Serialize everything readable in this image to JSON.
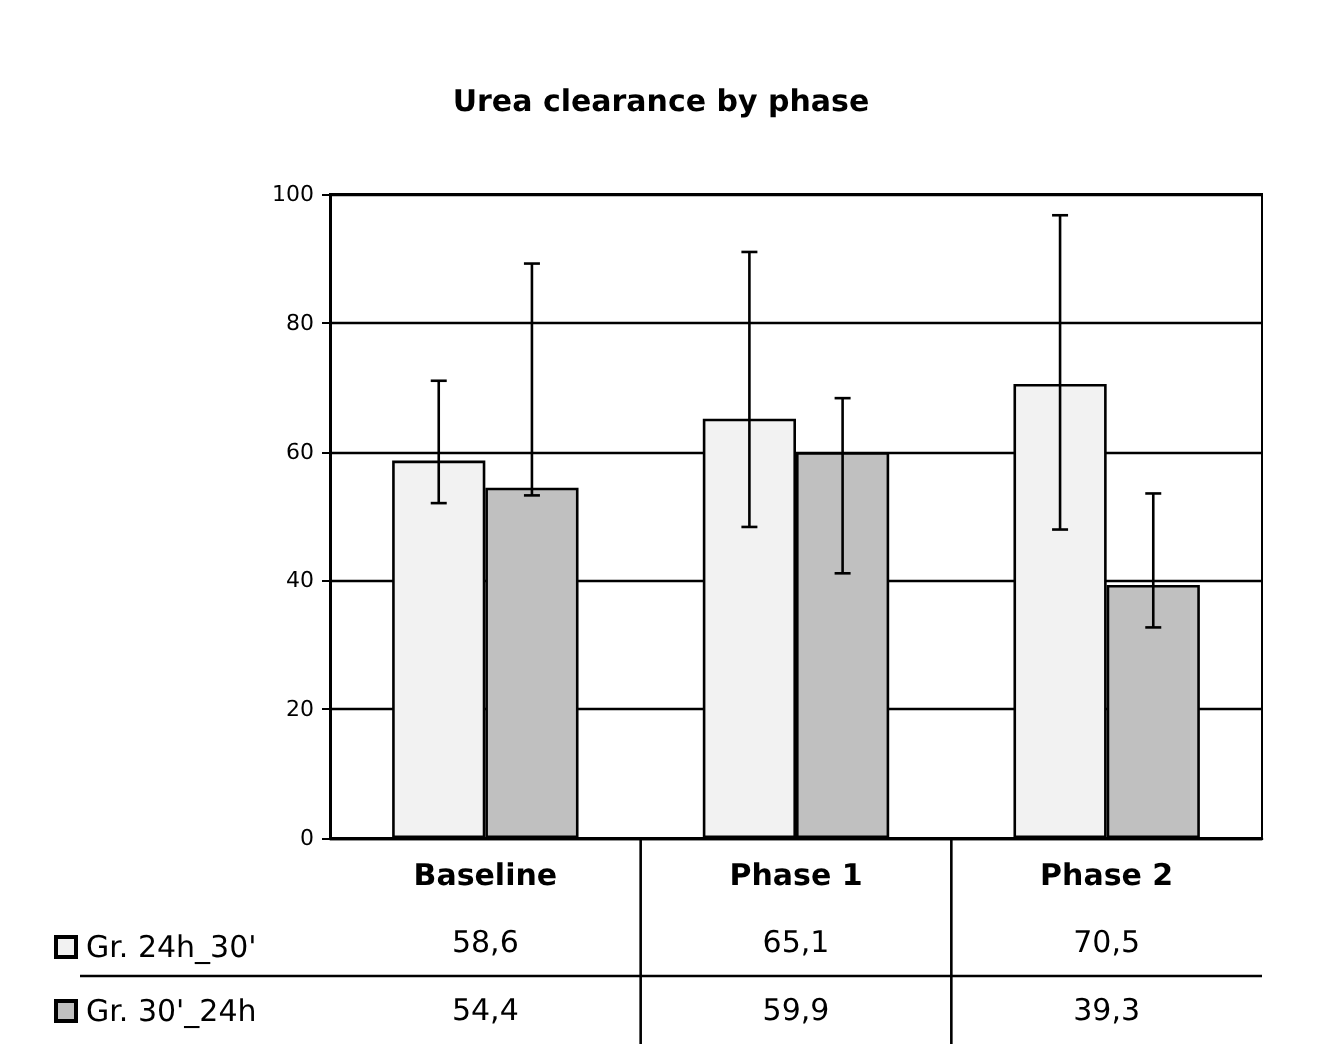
{
  "chart_data": {
    "type": "bar",
    "title": "Urea clearance by phase",
    "categories": [
      "Baseline",
      "Phase 1",
      "Phase 2"
    ],
    "series": [
      {
        "name": "Gr. 24h_30'",
        "color": "#f2f2f2",
        "values": [
          58.6,
          65.1,
          70.5
        ],
        "value_labels": [
          "58,6",
          "65,1",
          "70,5"
        ],
        "errors": [
          [
            52.0,
            71.0
          ],
          [
            48.3,
            91.0
          ],
          [
            47.9,
            96.7
          ]
        ]
      },
      {
        "name": "Gr. 30'_24h",
        "color": "#c0c0c0",
        "values": [
          54.4,
          59.9,
          39.3
        ],
        "value_labels": [
          "54,4",
          "59,9",
          "39,3"
        ],
        "errors": [
          [
            53.2,
            89.2
          ],
          [
            41.1,
            68.3
          ],
          [
            32.7,
            53.5
          ]
        ]
      }
    ],
    "ylim": [
      0,
      100
    ],
    "yticks": [
      0,
      20,
      40,
      60,
      80,
      100
    ],
    "grid": "y",
    "legend": "bottom left"
  }
}
